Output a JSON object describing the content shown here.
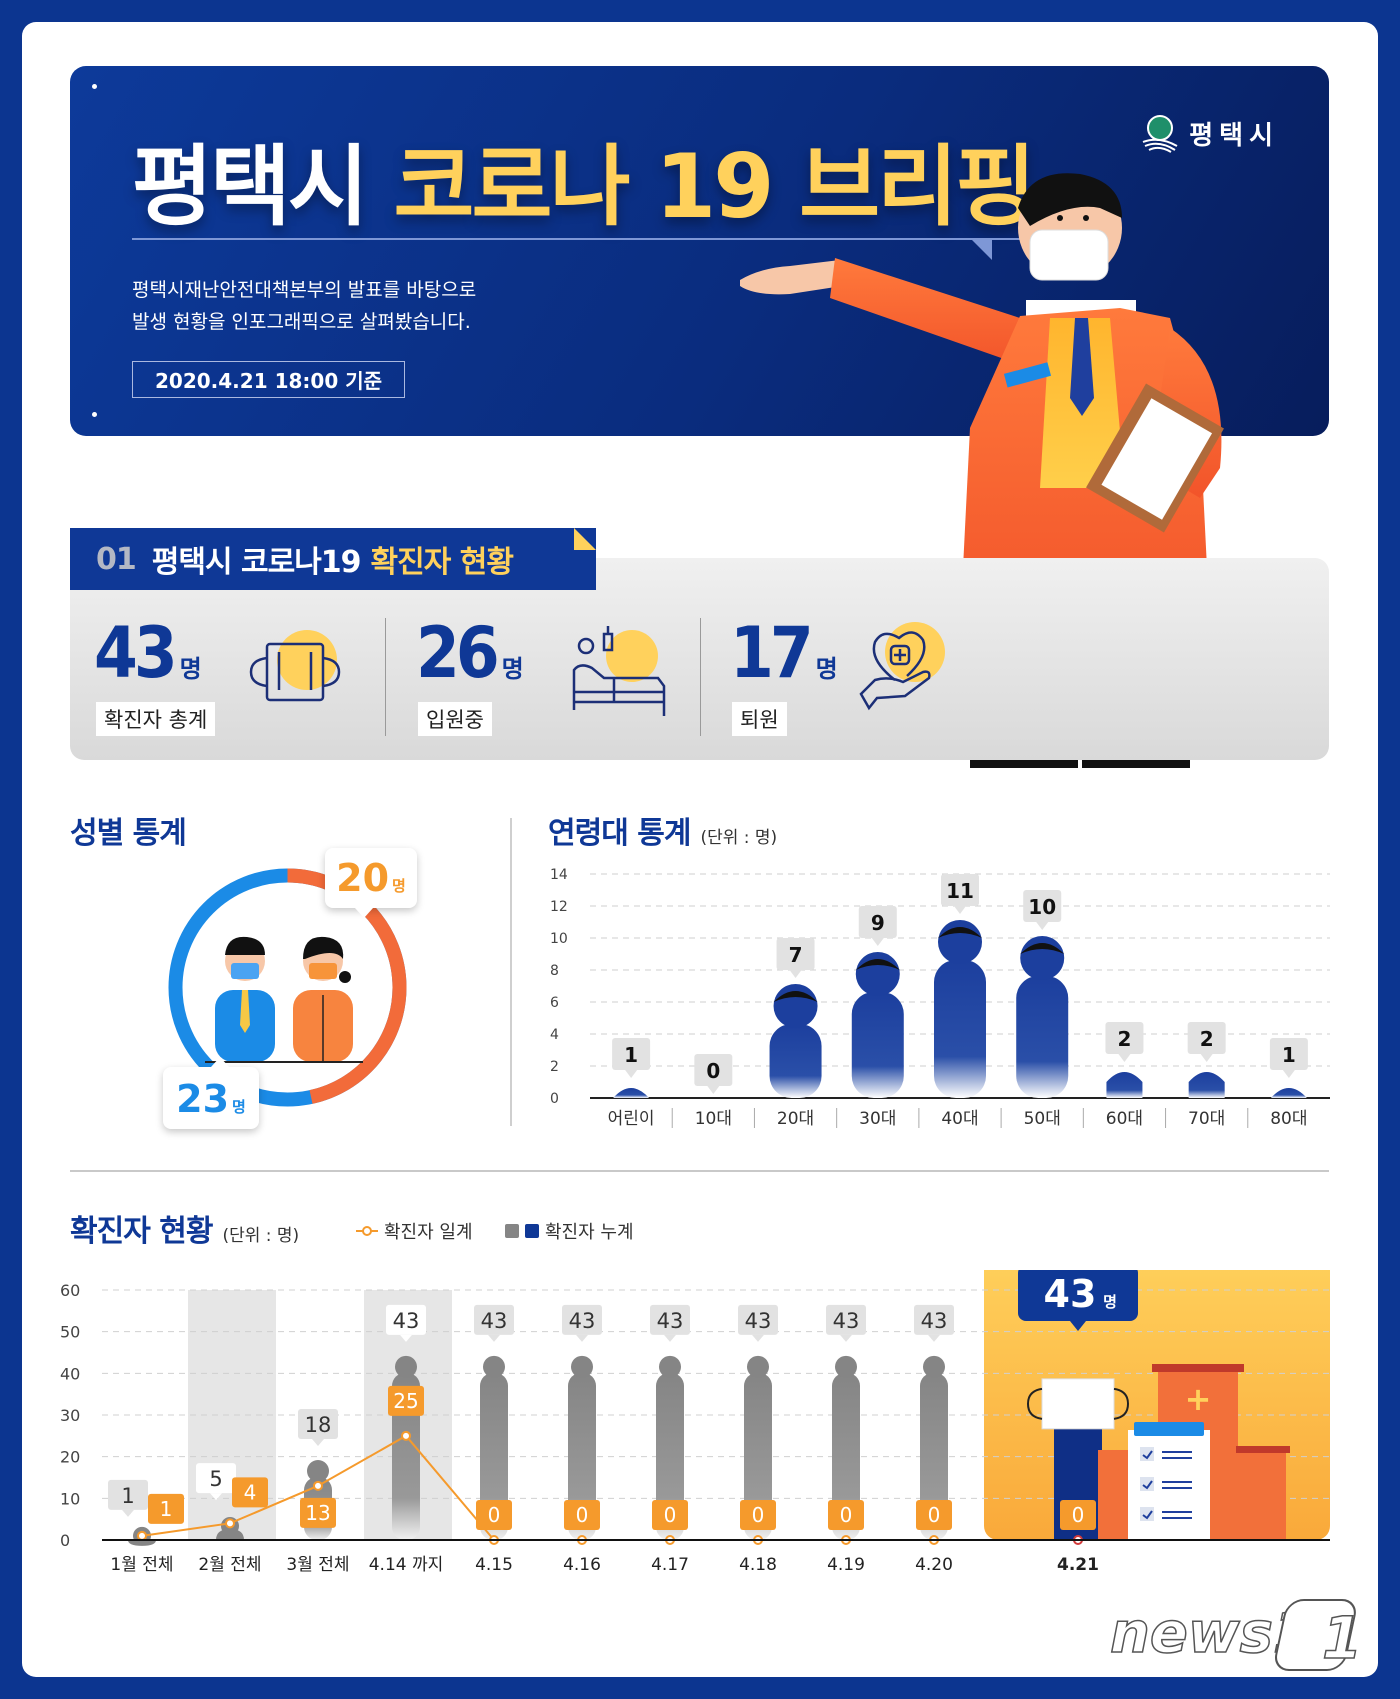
{
  "header": {
    "title_white": "평택시",
    "title_yellow": "코로나 19 브리핑",
    "description_line1": "평택시재난안전대책본부의 발표를 바탕으로",
    "description_line2": "발생 현황을 인포그래픽으로 살펴봤습니다.",
    "date_badge": "2020.4.21 18:00 기준",
    "logo_text": "평택시"
  },
  "section01": {
    "num": "01",
    "title_white": "평택시 코로나19",
    "title_yellow": "확진자 현황",
    "stats": [
      {
        "value": "43",
        "unit": "명",
        "label": "확진자 총계",
        "icon": "mask-icon"
      },
      {
        "value": "26",
        "unit": "명",
        "label": "입원중",
        "icon": "hospital-bed-icon"
      },
      {
        "value": "17",
        "unit": "명",
        "label": "퇴원",
        "icon": "heart-hand-icon"
      }
    ]
  },
  "gender": {
    "title": "성별 통계",
    "female_value": "20",
    "male_value": "23",
    "unit": "명"
  },
  "age": {
    "title": "연령대 통계",
    "unit_label": "(단위 : 명)"
  },
  "daily": {
    "title": "확진자 현황",
    "unit_label": "(단위 : 명)",
    "legend_daily": "확진자 일계",
    "legend_cumulative": "확진자 누계",
    "highlight_value": "43",
    "highlight_unit": "명"
  },
  "watermark": "news1",
  "colors": {
    "navy": "#0f3896",
    "yellow": "#ffd15c",
    "orange": "#f59a2c",
    "male_blue": "#1b8be6",
    "female_orange": "#f26b3a",
    "gray_bar": "#858585"
  },
  "chart_data": [
    {
      "type": "pie",
      "title": "성별 통계",
      "categories": [
        "남성",
        "여성"
      ],
      "values": [
        23,
        20
      ],
      "unit": "명",
      "colors": [
        "#1b8be6",
        "#f26b3a"
      ]
    },
    {
      "type": "bar",
      "title": "연령대 통계",
      "unit": "명",
      "categories": [
        "어린이",
        "10대",
        "20대",
        "30대",
        "40대",
        "50대",
        "60대",
        "70대",
        "80대"
      ],
      "values": [
        1,
        0,
        7,
        9,
        11,
        10,
        2,
        2,
        1
      ],
      "xlabel": "",
      "ylabel": "",
      "yticks": [
        0,
        2,
        4,
        6,
        8,
        10,
        12,
        14
      ],
      "ylim": [
        0,
        14
      ],
      "grid": true
    },
    {
      "type": "bar",
      "title": "확진자 현황",
      "unit": "명",
      "categories": [
        "1월 전체",
        "2월 전체",
        "3월 전체",
        "4.14 까지",
        "4.15",
        "4.16",
        "4.17",
        "4.18",
        "4.19",
        "4.20",
        "4.21"
      ],
      "series": [
        {
          "name": "확진자 누계",
          "type": "bar",
          "values": [
            1,
            5,
            18,
            43,
            43,
            43,
            43,
            43,
            43,
            43,
            43
          ]
        },
        {
          "name": "확진자 일계",
          "type": "line",
          "values": [
            1,
            4,
            13,
            25,
            0,
            0,
            0,
            0,
            0,
            0,
            0
          ]
        }
      ],
      "yticks": [
        0,
        10,
        20,
        30,
        40,
        50,
        60
      ],
      "ylim": [
        0,
        60
      ],
      "grid": true,
      "legend_position": "top"
    }
  ]
}
